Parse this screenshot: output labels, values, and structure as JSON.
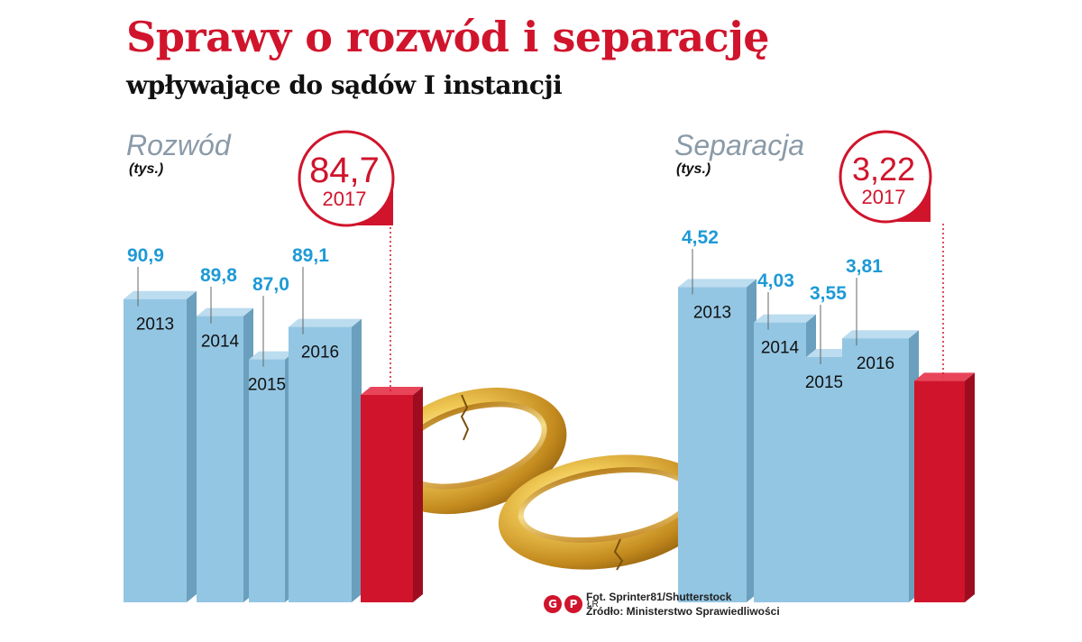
{
  "header": {
    "title": "Sprawy o rozwód i separację",
    "subtitle": "wpływające do sądów I instancji"
  },
  "credits": {
    "photo": "Fot. Sprinter81/Shutterstock",
    "source": "Źródło: Ministerstwo Sprawiedliwości",
    "logo_letters": [
      "G",
      "P"
    ],
    "logo_small": "ŁR"
  },
  "colors": {
    "accent": "#d0142c",
    "bar_front": "#93c6e3",
    "bar_side": "#6a9fbd",
    "bar_top": "#bcdcef",
    "value_label": "#1e9ad6",
    "series_label": "#8a9aa8"
  },
  "chart_data": [
    {
      "type": "bar",
      "title": "Rozwód",
      "unit": "(tys.)",
      "categories": [
        "2013",
        "2014",
        "2015",
        "2016",
        "2017"
      ],
      "values": [
        90.9,
        89.8,
        87.0,
        89.1,
        84.7
      ],
      "value_labels": [
        "90,9",
        "89,8",
        "87,0",
        "89,1",
        "84,7"
      ],
      "highlight": {
        "year": "2017",
        "value_label": "84,7"
      }
    },
    {
      "type": "bar",
      "title": "Separacja",
      "unit": "(tys.)",
      "categories": [
        "2013",
        "2014",
        "2015",
        "2016",
        "2017"
      ],
      "values": [
        4.52,
        4.03,
        3.55,
        3.81,
        3.22
      ],
      "value_labels": [
        "4,52",
        "4,03",
        "3,55",
        "3,81",
        "3,22"
      ],
      "highlight": {
        "year": "2017",
        "value_label": "3,22"
      }
    }
  ]
}
